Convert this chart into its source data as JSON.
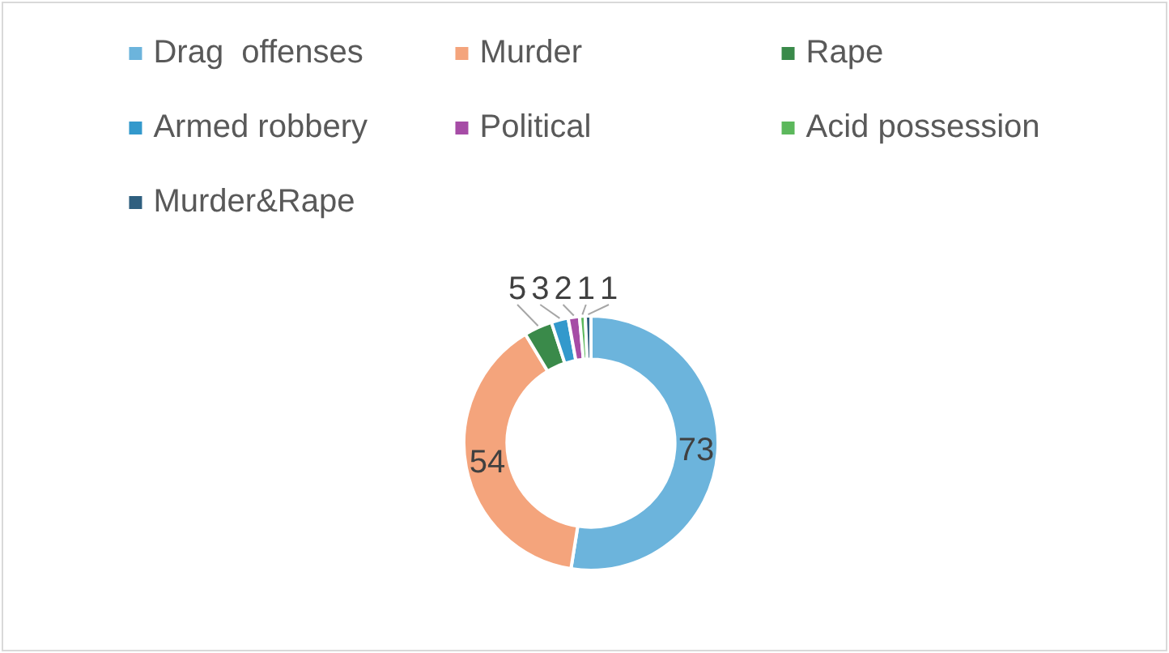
{
  "chart_data": {
    "type": "donut",
    "categories": [
      "Drag  offenses",
      "Murder",
      "Rape",
      "Armed robbery",
      "Political",
      "Acid possession",
      "Murder&Rape"
    ],
    "values": [
      73,
      54,
      5,
      3,
      2,
      1,
      1
    ],
    "colors": [
      "#6cb4dc",
      "#f4a47c",
      "#3a8a4a",
      "#3399cc",
      "#a64ca6",
      "#5cb85c",
      "#2f5f7f"
    ],
    "legend": "top",
    "data_labels": true
  }
}
